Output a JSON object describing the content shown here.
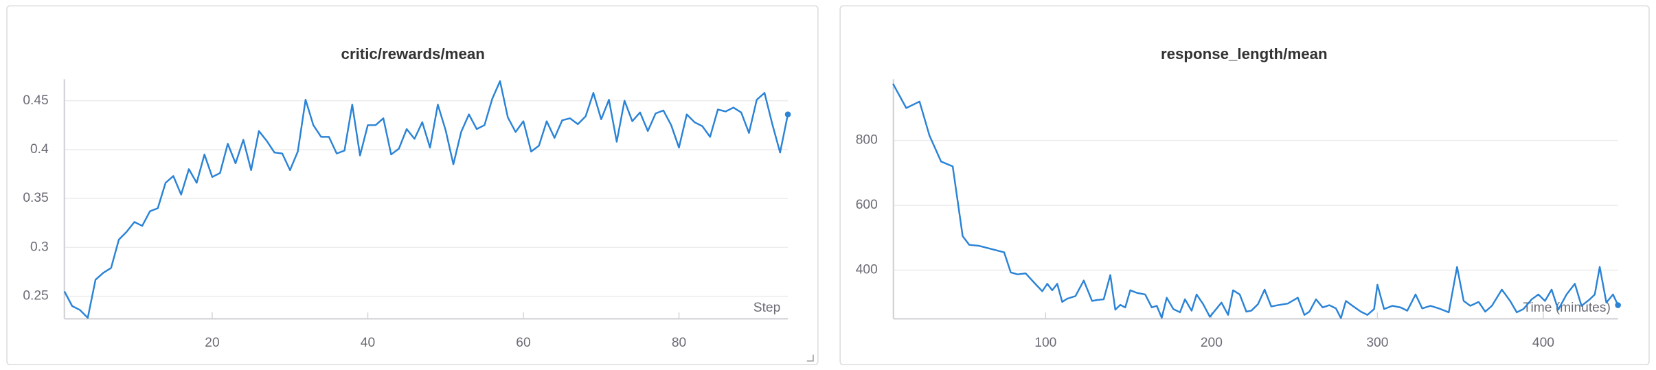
{
  "chart_data": [
    {
      "type": "line",
      "title": "critic/rewards/mean",
      "x_label": "Step",
      "color": "#2b83d6",
      "grid": true,
      "xlim": [
        1,
        94
      ],
      "xticks": [
        20,
        40,
        60,
        80
      ],
      "ylim": [
        0.227,
        0.472
      ],
      "yticks": [
        0.25,
        0.3,
        0.35,
        0.4,
        0.45
      ],
      "x": [
        1,
        2,
        3,
        4,
        5,
        6,
        7,
        8,
        9,
        10,
        11,
        12,
        13,
        14,
        15,
        16,
        17,
        18,
        19,
        20,
        21,
        22,
        23,
        24,
        25,
        26,
        27,
        28,
        29,
        30,
        31,
        32,
        33,
        34,
        35,
        36,
        37,
        38,
        39,
        40,
        41,
        42,
        43,
        44,
        45,
        46,
        47,
        48,
        49,
        50,
        51,
        52,
        53,
        54,
        55,
        56,
        57,
        58,
        59,
        60,
        61,
        62,
        63,
        64,
        65,
        66,
        67,
        68,
        69,
        70,
        71,
        72,
        73,
        74,
        75,
        76,
        77,
        78,
        79,
        80,
        81,
        82,
        83,
        84,
        85,
        86,
        87,
        88,
        89,
        90,
        91,
        92,
        93,
        94
      ],
      "series": [
        {
          "color": "#2b83d6",
          "values": [
            0.255,
            0.24,
            0.236,
            0.228,
            0.267,
            0.274,
            0.279,
            0.308,
            0.316,
            0.326,
            0.322,
            0.337,
            0.34,
            0.366,
            0.373,
            0.354,
            0.38,
            0.366,
            0.395,
            0.372,
            0.376,
            0.406,
            0.386,
            0.41,
            0.379,
            0.419,
            0.409,
            0.397,
            0.396,
            0.379,
            0.398,
            0.451,
            0.425,
            0.413,
            0.413,
            0.396,
            0.399,
            0.446,
            0.394,
            0.425,
            0.425,
            0.432,
            0.395,
            0.401,
            0.421,
            0.411,
            0.428,
            0.402,
            0.446,
            0.42,
            0.385,
            0.418,
            0.436,
            0.421,
            0.425,
            0.452,
            0.47,
            0.433,
            0.418,
            0.429,
            0.398,
            0.404,
            0.429,
            0.412,
            0.43,
            0.432,
            0.426,
            0.434,
            0.458,
            0.431,
            0.451,
            0.408,
            0.45,
            0.429,
            0.438,
            0.419,
            0.437,
            0.44,
            0.425,
            0.402,
            0.436,
            0.428,
            0.424,
            0.413,
            0.441,
            0.439,
            0.443,
            0.438,
            0.417,
            0.451,
            0.458,
            0.426,
            0.397,
            0.436
          ]
        }
      ]
    },
    {
      "type": "line",
      "title": "response_length/mean",
      "x_label": "Time (minutes)",
      "color": "#2b83d6",
      "grid": true,
      "xlim": [
        8.3,
        445
      ],
      "xticks": [
        100,
        200,
        300,
        400
      ],
      "ylim": [
        250,
        989
      ],
      "yticks": [
        400,
        600,
        800
      ],
      "x": [
        8,
        16,
        24,
        30,
        37,
        44,
        50,
        54,
        60,
        75,
        79,
        83,
        88,
        93,
        98,
        101,
        104,
        107,
        110,
        113,
        118,
        123,
        128,
        131,
        135,
        139,
        142,
        145,
        148,
        151,
        155,
        160,
        164,
        167,
        170,
        173,
        177,
        181,
        184,
        188,
        191,
        195,
        199,
        206,
        210,
        213,
        217,
        221,
        224,
        228,
        232,
        236,
        240,
        246,
        252,
        256,
        259,
        263,
        267,
        271,
        275,
        278,
        281,
        285,
        290,
        294,
        298,
        300,
        304,
        309,
        314,
        318,
        323,
        327,
        332,
        337,
        343,
        348,
        352,
        356,
        361,
        365,
        369,
        375,
        380,
        384,
        388,
        393,
        397,
        401,
        405,
        409,
        414,
        419,
        423,
        428,
        431,
        434,
        438,
        442,
        445
      ],
      "series": [
        {
          "color": "#2b83d6",
          "values": [
            975,
            900,
            920,
            815,
            735,
            720,
            505,
            478,
            475,
            455,
            393,
            387,
            390,
            362,
            335,
            358,
            338,
            358,
            302,
            312,
            320,
            368,
            305,
            308,
            310,
            385,
            278,
            293,
            285,
            338,
            330,
            325,
            285,
            290,
            253,
            315,
            280,
            270,
            310,
            275,
            325,
            295,
            256,
            300,
            262,
            338,
            325,
            272,
            275,
            295,
            340,
            288,
            292,
            297,
            315,
            262,
            272,
            310,
            285,
            292,
            282,
            252,
            305,
            290,
            272,
            262,
            280,
            355,
            280,
            290,
            285,
            275,
            325,
            282,
            290,
            282,
            270,
            410,
            305,
            290,
            302,
            272,
            290,
            340,
            305,
            270,
            280,
            310,
            325,
            305,
            340,
            278,
            325,
            358,
            290,
            310,
            325,
            410,
            300,
            325,
            292
          ]
        }
      ]
    }
  ]
}
